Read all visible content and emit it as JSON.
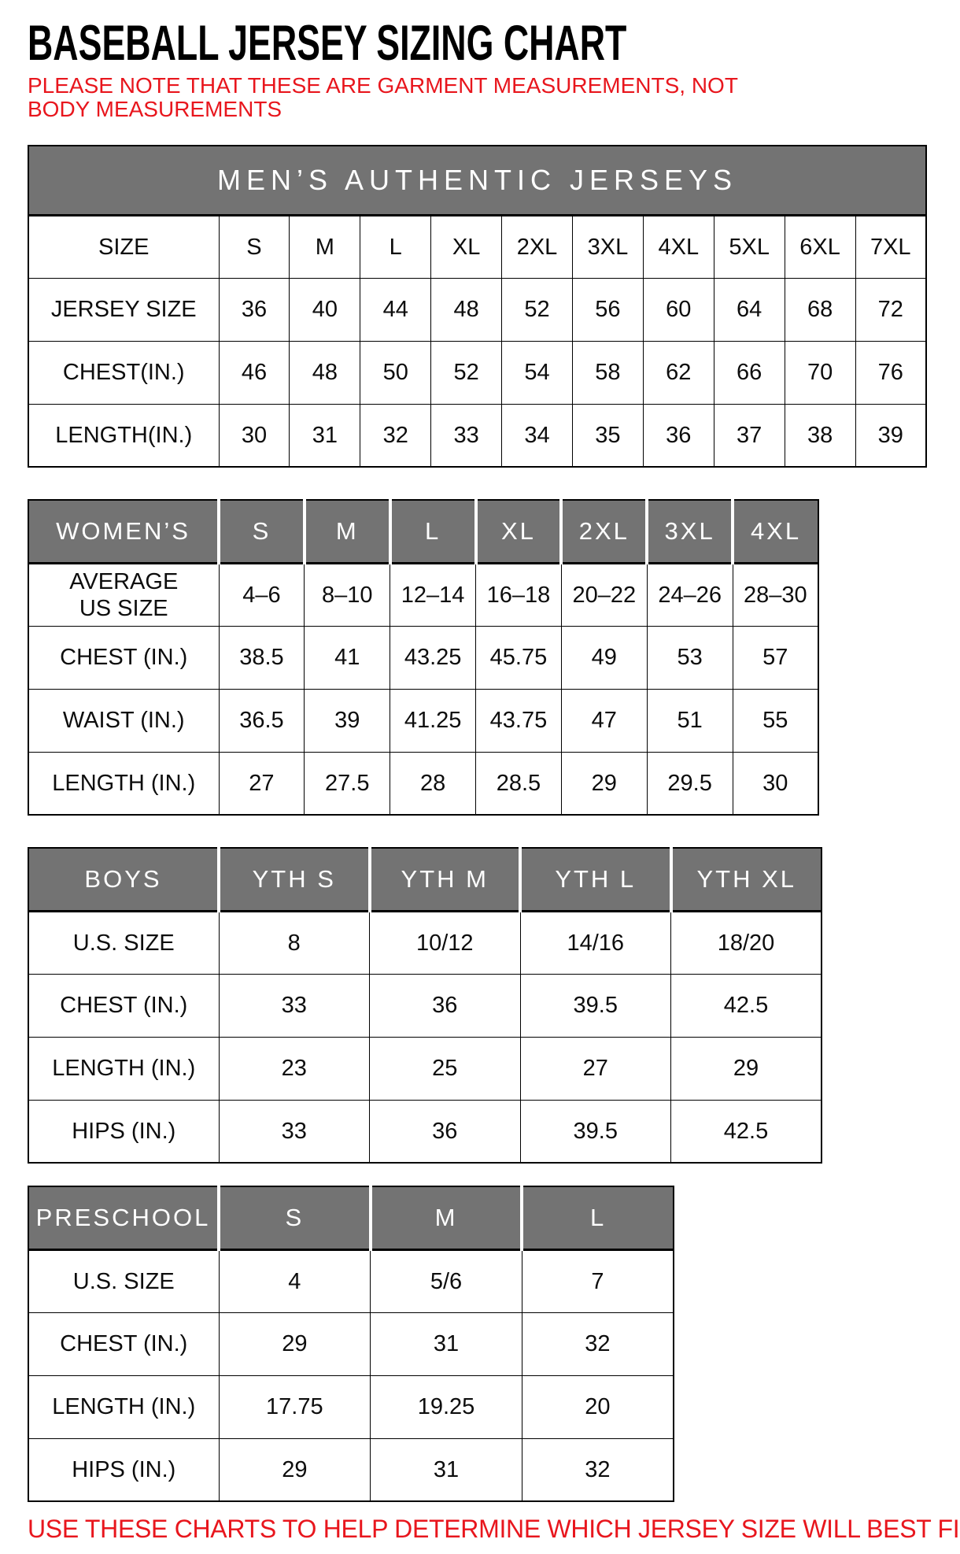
{
  "page": {
    "title": "BASEBALL JERSEY SIZING CHART",
    "note": "PLEASE NOTE THAT THESE ARE GARMENT MEASUREMENTS, NOT BODY MEASUREMENTS",
    "footer": "USE THESE CHARTS TO HELP DETERMINE WHICH JERSEY SIZE WILL BEST FIT YOU.",
    "colors": {
      "accent_red": "#e8161d",
      "header_gray": "#737373",
      "border_black": "#000000"
    }
  },
  "tables": {
    "mens": {
      "banner": "MEN’S AUTHENTIC JERSEYS",
      "rows": [
        [
          "SIZE",
          "S",
          "M",
          "L",
          "XL",
          "2XL",
          "3XL",
          "4XL",
          "5XL",
          "6XL",
          "7XL"
        ],
        [
          "JERSEY SIZE",
          "36",
          "40",
          "44",
          "48",
          "52",
          "56",
          "60",
          "64",
          "68",
          "72"
        ],
        [
          "CHEST(IN.)",
          "46",
          "48",
          "50",
          "52",
          "54",
          "58",
          "62",
          "66",
          "70",
          "76"
        ],
        [
          "LENGTH(IN.)",
          "30",
          "31",
          "32",
          "33",
          "34",
          "35",
          "36",
          "37",
          "38",
          "39"
        ]
      ]
    },
    "womens": {
      "header_cells": [
        "WOMEN’S",
        "S",
        "M",
        "L",
        "XL",
        "2XL",
        "3XL",
        "4XL"
      ],
      "rows": [
        [
          "AVERAGE\nUS SIZE",
          "4–6",
          "8–10",
          "12–14",
          "16–18",
          "20–22",
          "24–26",
          "28–30"
        ],
        [
          "CHEST (IN.)",
          "38.5",
          "41",
          "43.25",
          "45.75",
          "49",
          "53",
          "57"
        ],
        [
          "WAIST (IN.)",
          "36.5",
          "39",
          "41.25",
          "43.75",
          "47",
          "51",
          "55"
        ],
        [
          "LENGTH (IN.)",
          "27",
          "27.5",
          "28",
          "28.5",
          "29",
          "29.5",
          "30"
        ]
      ]
    },
    "boys": {
      "header_cells": [
        "BOYS",
        "YTH S",
        "YTH M",
        "YTH L",
        "YTH XL"
      ],
      "rows": [
        [
          "U.S. SIZE",
          "8",
          "10/12",
          "14/16",
          "18/20"
        ],
        [
          "CHEST (IN.)",
          "33",
          "36",
          "39.5",
          "42.5"
        ],
        [
          "LENGTH (IN.)",
          "23",
          "25",
          "27",
          "29"
        ],
        [
          "HIPS (IN.)",
          "33",
          "36",
          "39.5",
          "42.5"
        ]
      ]
    },
    "preschool": {
      "header_cells": [
        "PRESCHOOL",
        "S",
        "M",
        "L"
      ],
      "rows": [
        [
          "U.S. SIZE",
          "4",
          "5/6",
          "7"
        ],
        [
          "CHEST (IN.)",
          "29",
          "31",
          "32"
        ],
        [
          "LENGTH (IN.)",
          "17.75",
          "19.25",
          "20"
        ],
        [
          "HIPS (IN.)",
          "29",
          "31",
          "32"
        ]
      ]
    }
  }
}
